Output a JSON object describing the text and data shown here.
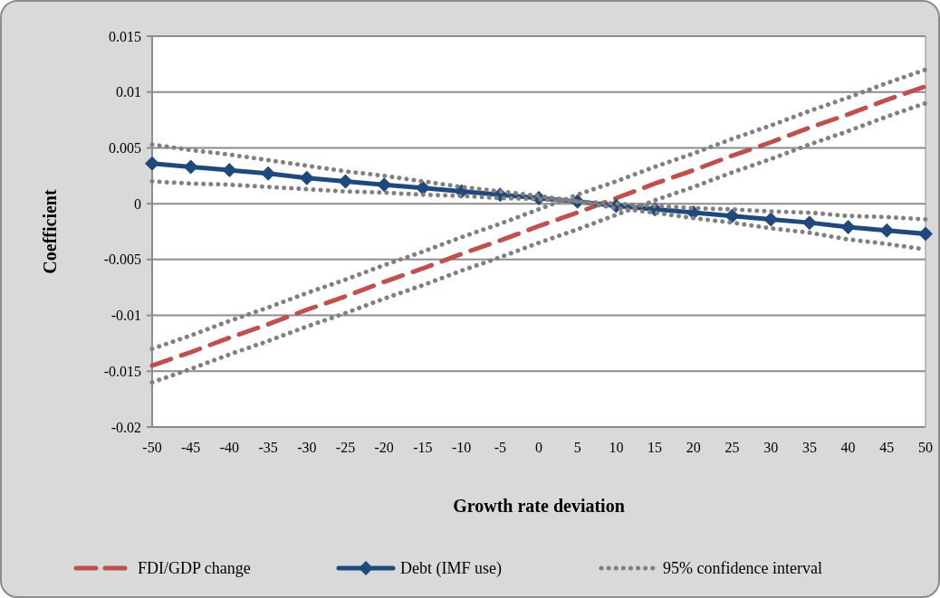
{
  "chart_data": {
    "type": "line",
    "xlabel": "Growth rate deviation",
    "ylabel": "Coefficient",
    "categories": [
      "-50",
      "-45",
      "-40",
      "-35",
      "-30",
      "-25",
      "-20",
      "-15",
      "-10",
      "-5",
      "0",
      "5",
      "10",
      "15",
      "20",
      "25",
      "30",
      "35",
      "40",
      "45",
      "50"
    ],
    "ylim": [
      -0.02,
      0.015
    ],
    "yticks": [
      {
        "value": -0.02,
        "label": "-0.02"
      },
      {
        "value": -0.015,
        "label": "-0.015"
      },
      {
        "value": -0.01,
        "label": "-0.01"
      },
      {
        "value": -0.005,
        "label": "-0.005"
      },
      {
        "value": 0,
        "label": "0"
      },
      {
        "value": 0.005,
        "label": "0.005"
      },
      {
        "value": 0.01,
        "label": "0.01"
      },
      {
        "value": 0.015,
        "label": "0.015"
      }
    ],
    "grid": "y",
    "legend": "bottom",
    "series": [
      {
        "name": "FDI/GDP change",
        "color": "#c0504d",
        "line_style": "dashed",
        "marker": "none",
        "values": [
          -0.0145,
          -0.0133,
          -0.012,
          -0.0108,
          -0.0095,
          -0.0083,
          -0.007,
          -0.0058,
          -0.0045,
          -0.0033,
          -0.002,
          -0.0008,
          0.0005,
          0.0018,
          0.003,
          0.0043,
          0.0055,
          0.0068,
          0.008,
          0.0093,
          0.0105
        ]
      },
      {
        "name": "Debt (IMF use)",
        "color": "#1f497d",
        "line_style": "solid",
        "marker": "diamond",
        "values": [
          0.0036,
          0.0033,
          0.003,
          0.0027,
          0.0023,
          0.002,
          0.0017,
          0.0014,
          0.0011,
          0.0008,
          0.0005,
          0.0002,
          -0.0002,
          -0.0005,
          -0.0008,
          -0.0011,
          -0.0014,
          -0.0017,
          -0.0021,
          -0.0024,
          -0.0027
        ]
      },
      {
        "name": "95% confidence interval",
        "color": "#808080",
        "line_style": "dotted",
        "marker": "none",
        "values": [
          -0.013,
          -0.0118,
          -0.0105,
          -0.0093,
          -0.008,
          -0.0068,
          -0.0055,
          -0.0043,
          -0.003,
          -0.0018,
          -0.0005,
          0.0008,
          0.002,
          0.0033,
          0.0045,
          0.0058,
          0.007,
          0.0083,
          0.0095,
          0.0108,
          0.012
        ]
      },
      {
        "color": "#808080",
        "line_style": "dotted",
        "marker": "none",
        "values": [
          -0.016,
          -0.0148,
          -0.0135,
          -0.0123,
          -0.011,
          -0.0098,
          -0.0085,
          -0.0073,
          -0.006,
          -0.0048,
          -0.0035,
          -0.0023,
          -0.001,
          0.0003,
          0.0015,
          0.0028,
          0.004,
          0.0053,
          0.0065,
          0.0078,
          0.009
        ]
      },
      {
        "color": "#808080",
        "line_style": "dotted",
        "marker": "none",
        "values": [
          0.0053,
          0.0048,
          0.0044,
          0.0039,
          0.0034,
          0.0029,
          0.0025,
          0.002,
          0.0015,
          0.0011,
          0.0007,
          0.0002,
          0,
          -0.0002,
          -0.0004,
          -0.0005,
          -0.0007,
          -0.0008,
          -0.0011,
          -0.0012,
          -0.0014
        ]
      },
      {
        "color": "#808080",
        "line_style": "dotted",
        "marker": "none",
        "values": [
          0.002,
          0.0018,
          0.0017,
          0.0015,
          0.0013,
          0.0011,
          0.001,
          0.0008,
          0.0007,
          0.0005,
          0.0004,
          0.0002,
          -0.0004,
          -0.0008,
          -0.0013,
          -0.0017,
          -0.0022,
          -0.0026,
          -0.0032,
          -0.0036,
          -0.0041
        ]
      }
    ]
  }
}
